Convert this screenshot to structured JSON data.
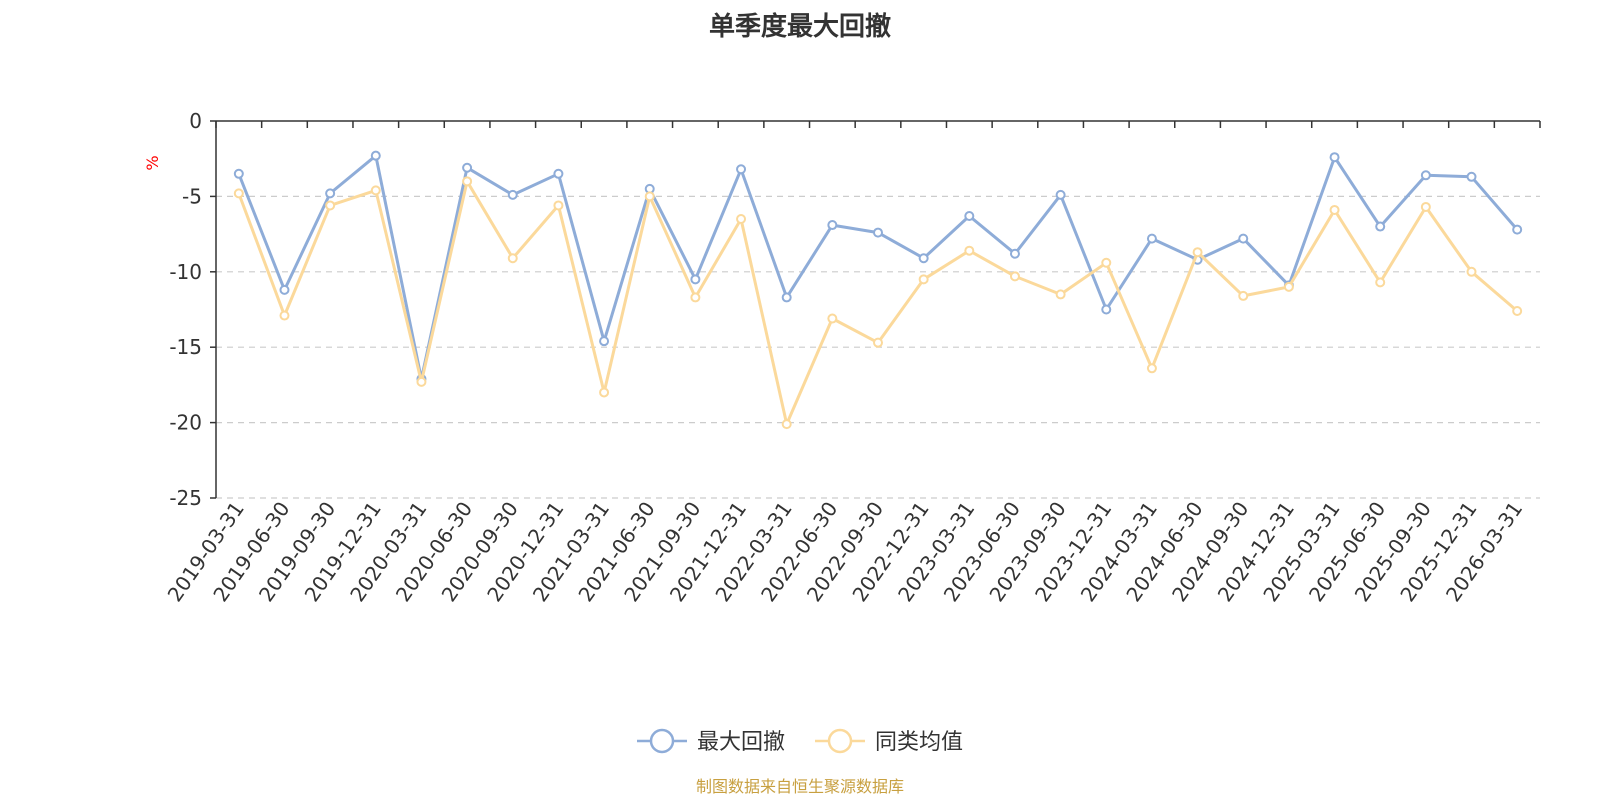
{
  "chart_data": {
    "type": "line",
    "title": "单季度最大回撤",
    "ylabel": "%",
    "ylim": [
      -25,
      0
    ],
    "yticks": [
      0,
      -5,
      -10,
      -15,
      -20,
      -25
    ],
    "grid": true,
    "legend_position": "bottom-center",
    "categories": [
      "2019-03-31",
      "2019-06-30",
      "2019-09-30",
      "2019-12-31",
      "2020-03-31",
      "2020-06-30",
      "2020-09-30",
      "2020-12-31",
      "2021-03-31",
      "2021-06-30",
      "2021-09-30",
      "2021-12-31",
      "2022-03-31",
      "2022-06-30",
      "2022-09-30",
      "2022-12-31",
      "2023-03-31",
      "2023-06-30",
      "2023-09-30",
      "2023-12-31",
      "2024-03-31",
      "2024-06-30",
      "2024-09-30",
      "2024-12-31",
      "2025-03-31",
      "2025-06-30",
      "2025-09-30",
      "2025-12-31",
      "2026-03-31"
    ],
    "series": [
      {
        "name": "最大回撤",
        "color": "#8eacd8",
        "values": [
          -3.5,
          -11.2,
          -4.8,
          -2.3,
          -17.1,
          -3.1,
          -4.9,
          -3.5,
          -14.6,
          -4.5,
          -10.5,
          -3.2,
          -11.7,
          -6.9,
          -7.4,
          -9.1,
          -6.3,
          -8.8,
          -4.9,
          -12.5,
          -7.8,
          -9.2,
          -7.8,
          -10.9,
          -2.4,
          -7.0,
          -3.6,
          -3.7,
          -7.2
        ]
      },
      {
        "name": "同类均值",
        "color": "#fbd99b",
        "values": [
          -4.8,
          -12.9,
          -5.6,
          -4.6,
          -17.3,
          -4.0,
          -9.1,
          -5.6,
          -18.0,
          -5.0,
          -11.7,
          -6.5,
          -20.1,
          -13.1,
          -14.7,
          -10.5,
          -8.6,
          -10.3,
          -11.5,
          -9.4,
          -16.4,
          -8.7,
          -11.6,
          -11.0,
          -5.9,
          -10.7,
          -5.7,
          -10.0,
          -12.6
        ]
      }
    ]
  },
  "source_text": "制图数据来自恒生聚源数据库",
  "colors": {
    "axis": "#333333",
    "grid": "#cccccc",
    "unit": "#ff0000",
    "source": "#c8a040"
  }
}
